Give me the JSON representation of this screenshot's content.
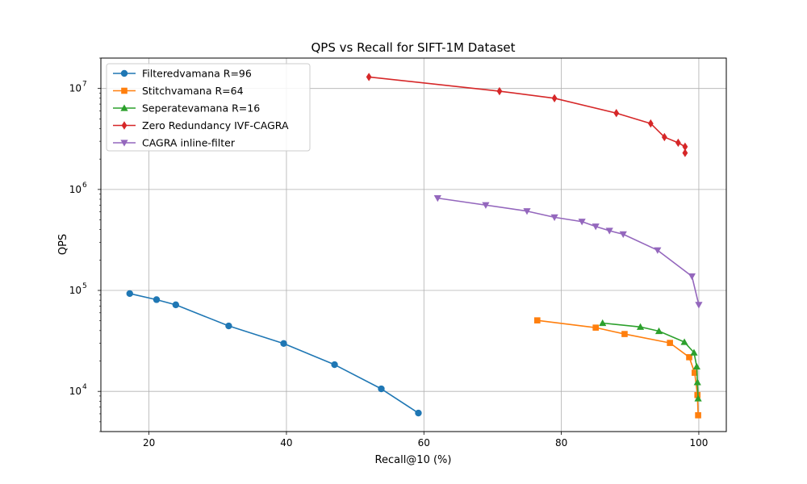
{
  "chart_data": {
    "type": "line",
    "title": "QPS vs Recall for SIFT-1M Dataset",
    "xlabel": "Recall@10 (%)",
    "ylabel": "QPS",
    "xlim": [
      13,
      104
    ],
    "ylim": [
      4000,
      20000000
    ],
    "yscale": "log",
    "grid": true,
    "legend_position": "top-left",
    "x_ticks": [
      {
        "value": 20,
        "label": "20"
      },
      {
        "value": 40,
        "label": "40"
      },
      {
        "value": 60,
        "label": "60"
      },
      {
        "value": 80,
        "label": "80"
      },
      {
        "value": 100,
        "label": "100"
      }
    ],
    "y_ticks": [
      {
        "value": 10000,
        "base": "10",
        "exp": "4"
      },
      {
        "value": 100000,
        "base": "10",
        "exp": "5"
      },
      {
        "value": 1000000,
        "base": "10",
        "exp": "6"
      },
      {
        "value": 10000000,
        "base": "10",
        "exp": "7"
      }
    ],
    "series": [
      {
        "name": "Filteredvamana R=96",
        "color": "#1f77b4",
        "marker": "circle",
        "x": [
          17.2,
          21.1,
          23.9,
          31.6,
          39.6,
          47.0,
          53.8,
          59.2
        ],
        "y": [
          93000,
          81000,
          72000,
          44500,
          29800,
          18400,
          10600,
          6100
        ]
      },
      {
        "name": "Stitchvamana R=64",
        "color": "#ff7f0e",
        "marker": "square",
        "x": [
          76.5,
          85.0,
          89.2,
          95.8,
          98.6,
          99.4,
          99.8,
          99.9
        ],
        "y": [
          50500,
          42800,
          37000,
          30200,
          21800,
          15300,
          9200,
          5800
        ]
      },
      {
        "name": "Seperatevamana R=16",
        "color": "#2ca02c",
        "marker": "triangle-up",
        "x": [
          86.0,
          91.5,
          94.2,
          97.9,
          99.3,
          99.7,
          99.8,
          99.9
        ],
        "y": [
          47500,
          43500,
          39500,
          30800,
          24200,
          17600,
          12300,
          8500
        ]
      },
      {
        "name": "Zero Redundancy IVF-CAGRA",
        "color": "#d62728",
        "marker": "diamond",
        "x": [
          52.0,
          71.0,
          79.0,
          88.0,
          93.0,
          95.0,
          97.0,
          98.0,
          98.0
        ],
        "y": [
          13000000,
          9400000,
          8000000,
          5700000,
          4500000,
          3300000,
          2900000,
          2650000,
          2300000
        ]
      },
      {
        "name": "CAGRA inline-filter",
        "color": "#9467bd",
        "marker": "triangle-down",
        "x": [
          62.0,
          69.0,
          75.0,
          79.0,
          83.0,
          85.0,
          87.0,
          89.0,
          94.0,
          99.0,
          100.0
        ],
        "y": [
          820000,
          700000,
          610000,
          530000,
          480000,
          430000,
          390000,
          360000,
          250000,
          138000,
          72000
        ]
      }
    ]
  }
}
